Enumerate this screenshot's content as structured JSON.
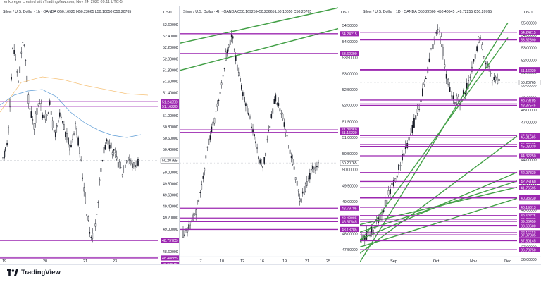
{
  "header": {
    "text": "erikbreger created with TradingView.com, Nov 24, 2025 09:11 UTC-5"
  },
  "footer": {
    "brand": "TradingView"
  },
  "colors": {
    "level_line": "#9c27b0",
    "channel": "#43a047",
    "price_label": "#9c27b0",
    "current_price_label": "#ffffff"
  },
  "panes": [
    {
      "title": "Silver / U.S. Dollar · 1h · OANDA  O50.16925  H50.23665  L50.10050  C50.20765",
      "currency": "USD",
      "ticks": [
        "52.60000",
        "52.40000",
        "52.20000",
        "52.00000",
        "51.80000",
        "51.60000",
        "51.40000",
        "51.20000",
        "51.00000",
        "50.80000",
        "50.60000",
        "50.40000",
        "50.20000",
        "50.00000",
        "49.80000",
        "49.60000",
        "49.40000",
        "49.20000",
        "49.00000",
        "48.80000",
        "48.60000"
      ],
      "levels": [
        "51.24250",
        "51.16220",
        "50.20765",
        "48.79705",
        "48.48885",
        "48.37545"
      ],
      "current": "50.20765",
      "x_labels": [
        "19",
        "20",
        "21",
        "23"
      ]
    },
    {
      "title": "Silver / U.S. Dollar · 4h · OANDA  O50.16925  H50.23665  L50.10050  C50.20765",
      "currency": "USD",
      "ticks": [
        "54.50000",
        "54.00000",
        "53.50000",
        "53.00000",
        "52.50000",
        "52.00000",
        "51.50000",
        "51.00000",
        "50.50000",
        "50.00000",
        "49.50000",
        "49.00000",
        "48.50000",
        "48.00000",
        "47.50000"
      ],
      "levels": [
        "54.24215",
        "53.62390",
        "51.24250",
        "51.16220",
        "50.20765",
        "48.79705",
        "48.48885",
        "48.37545",
        "48.13285"
      ],
      "current": "50.20765",
      "x_labels": [
        "7",
        "10",
        "12",
        "16",
        "19",
        "21",
        "25"
      ]
    },
    {
      "title": "Silver / U.S. Dollar · 1D · OANDA  O50.22600  H50.40645  L49.72255  C50.20765",
      "currency": "USD",
      "ticks": [
        "55.00000",
        "54.00000",
        "53.00000",
        "52.00000",
        "51.00000",
        "50.00000",
        "49.00000",
        "48.00000",
        "47.00000",
        "46.00000",
        "45.00000",
        "44.00000",
        "43.00000",
        "42.00000",
        "41.00000",
        "40.00000",
        "39.00000",
        "38.00000",
        "37.00000",
        "36.00000"
      ],
      "levels": [
        "54.24215",
        "53.62390",
        "51.24250",
        "51.16220",
        "50.20765",
        "48.79705",
        "48.48885",
        "48.37545",
        "45.94810",
        "45.81585",
        "45.22585",
        "45.08030",
        "44.32250",
        "42.97330",
        "42.26160",
        "41.76595",
        "40.97785",
        "40.93230",
        "40.19013",
        "39.52775",
        "39.23870",
        "39.06450",
        "38.73800",
        "38.69600",
        "38.15550",
        "37.97335",
        "37.50145",
        "36.78750"
      ],
      "current": "50.20765",
      "x_labels": [
        "Sep",
        "Oct",
        "Nov",
        "Dec"
      ]
    }
  ]
}
